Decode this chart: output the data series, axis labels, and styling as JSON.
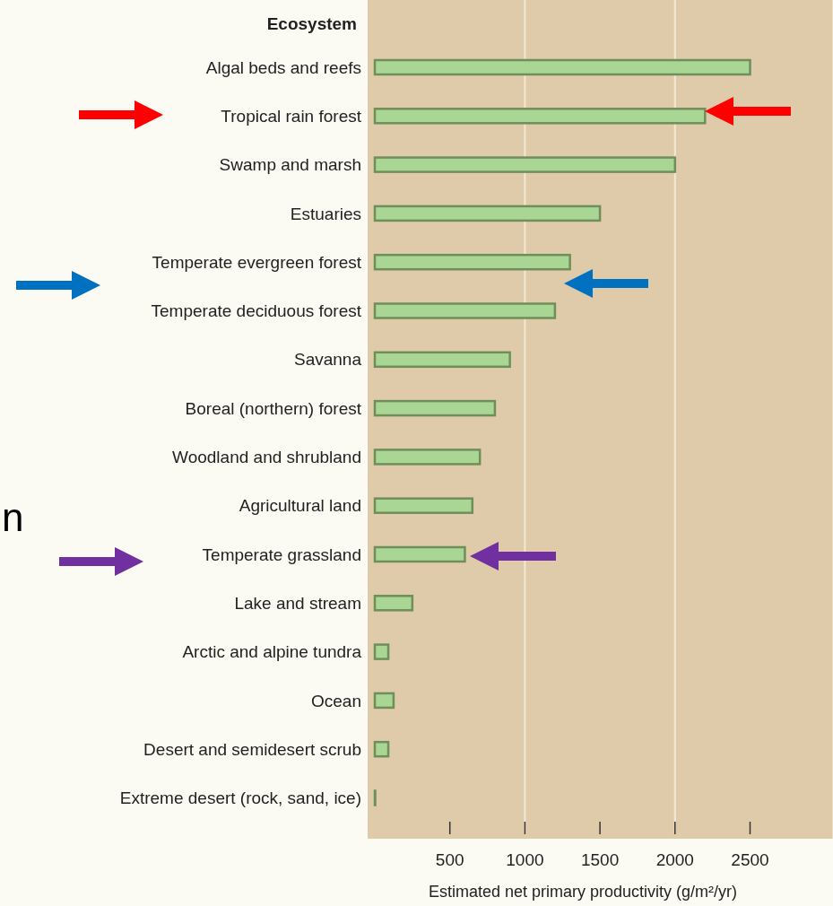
{
  "chart_data": {
    "type": "bar",
    "orientation": "horizontal",
    "ylabel": "Ecosystem",
    "xlabel": "Estimated net primary productivity (g/m²/yr)",
    "categories": [
      "Algal beds and reefs",
      "Tropical rain forest",
      "Swamp and marsh",
      "Estuaries",
      "Temperate evergreen forest",
      "Temperate deciduous forest",
      "Savanna",
      "Boreal (northern) forest",
      "Woodland and shrubland",
      "Agricultural land",
      "Temperate grassland",
      "Lake and stream",
      "Arctic and alpine tundra",
      "Ocean",
      "Desert and semidesert scrub",
      "Extreme desert (rock, sand, ice)"
    ],
    "values": [
      2500,
      2200,
      2000,
      1500,
      1300,
      1200,
      900,
      800,
      700,
      650,
      600,
      250,
      90,
      125,
      90,
      3
    ],
    "color": "#a9d595",
    "xlim": [
      0,
      3050
    ],
    "xticks": [
      500,
      1000,
      1500,
      2000,
      2500
    ],
    "ref_lines": [
      {
        "axis": "x",
        "value": 1000,
        "color": "#f3e9d2"
      },
      {
        "axis": "x",
        "value": 2000,
        "color": "#f3e9d2"
      }
    ],
    "annotations": [
      "n"
    ]
  }
}
